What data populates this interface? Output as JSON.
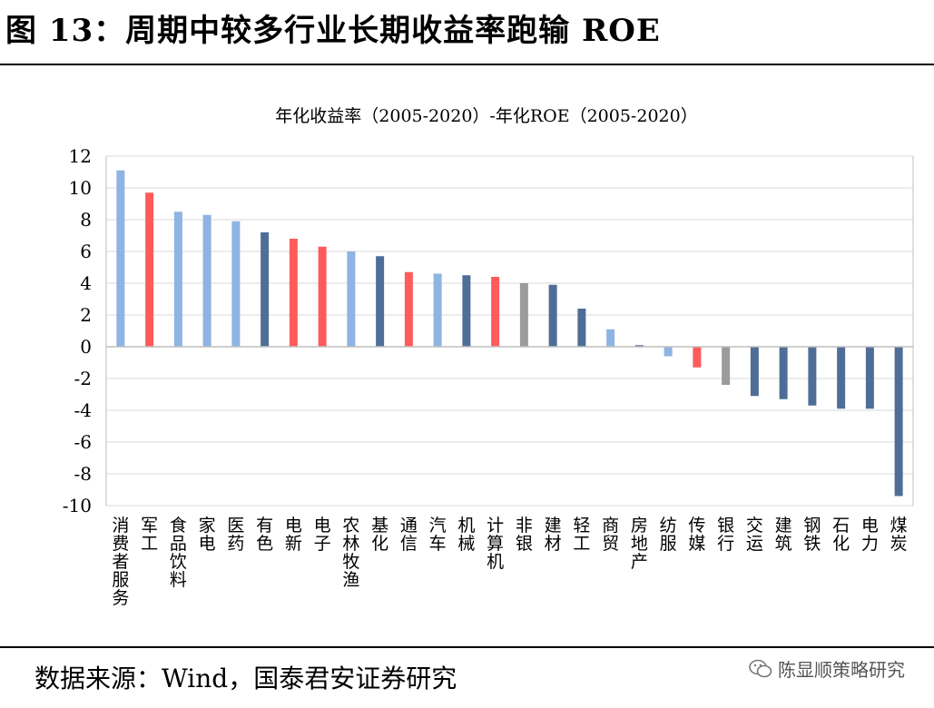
{
  "figure": {
    "title": "图 13：周期中较多行业长期收益率跑输 ROE",
    "source": "数据来源：Wind，国泰君安证券研究",
    "watermark": "陈显顺策略研究"
  },
  "chart_data": {
    "type": "bar",
    "title": "年化收益率（2005-2020）-年化ROE（2005-2020）",
    "xlabel": "",
    "ylabel": "",
    "ylim": [
      -10,
      12
    ],
    "yticks": [
      12,
      10,
      8,
      6,
      4,
      2,
      0,
      -2,
      -4,
      -6,
      -8,
      -10
    ],
    "grid": true,
    "legend": "none",
    "categories": [
      "消费者服务",
      "军工",
      "食品饮料",
      "家电",
      "医药",
      "有色",
      "电新",
      "电子",
      "农林牧渔",
      "基化",
      "通信",
      "汽车",
      "机械",
      "计算机",
      "非银",
      "建材",
      "轻工",
      "商贸",
      "房地产",
      "纺服",
      "传媒",
      "银行",
      "交运",
      "建筑",
      "钢铁",
      "石化",
      "电力",
      "煤炭"
    ],
    "values": [
      11.1,
      9.7,
      8.5,
      8.3,
      7.9,
      7.2,
      6.8,
      6.3,
      6.0,
      5.7,
      4.7,
      4.6,
      4.5,
      4.4,
      4.0,
      3.9,
      2.4,
      1.1,
      0.1,
      -0.6,
      -1.3,
      -2.4,
      -3.1,
      -3.3,
      -3.7,
      -3.9,
      -3.9,
      -9.4
    ],
    "colors": {
      "light_blue": "#8eb4e3",
      "red": "#ff5b5b",
      "dark_blue": "#4f6e97",
      "gray": "#9b9b9b"
    },
    "bar_colors": [
      "light_blue",
      "red",
      "light_blue",
      "light_blue",
      "light_blue",
      "dark_blue",
      "red",
      "red",
      "light_blue",
      "dark_blue",
      "red",
      "light_blue",
      "dark_blue",
      "red",
      "gray",
      "dark_blue",
      "dark_blue",
      "light_blue",
      "dark_blue",
      "light_blue",
      "red",
      "gray",
      "dark_blue",
      "dark_blue",
      "dark_blue",
      "dark_blue",
      "dark_blue",
      "dark_blue"
    ]
  }
}
